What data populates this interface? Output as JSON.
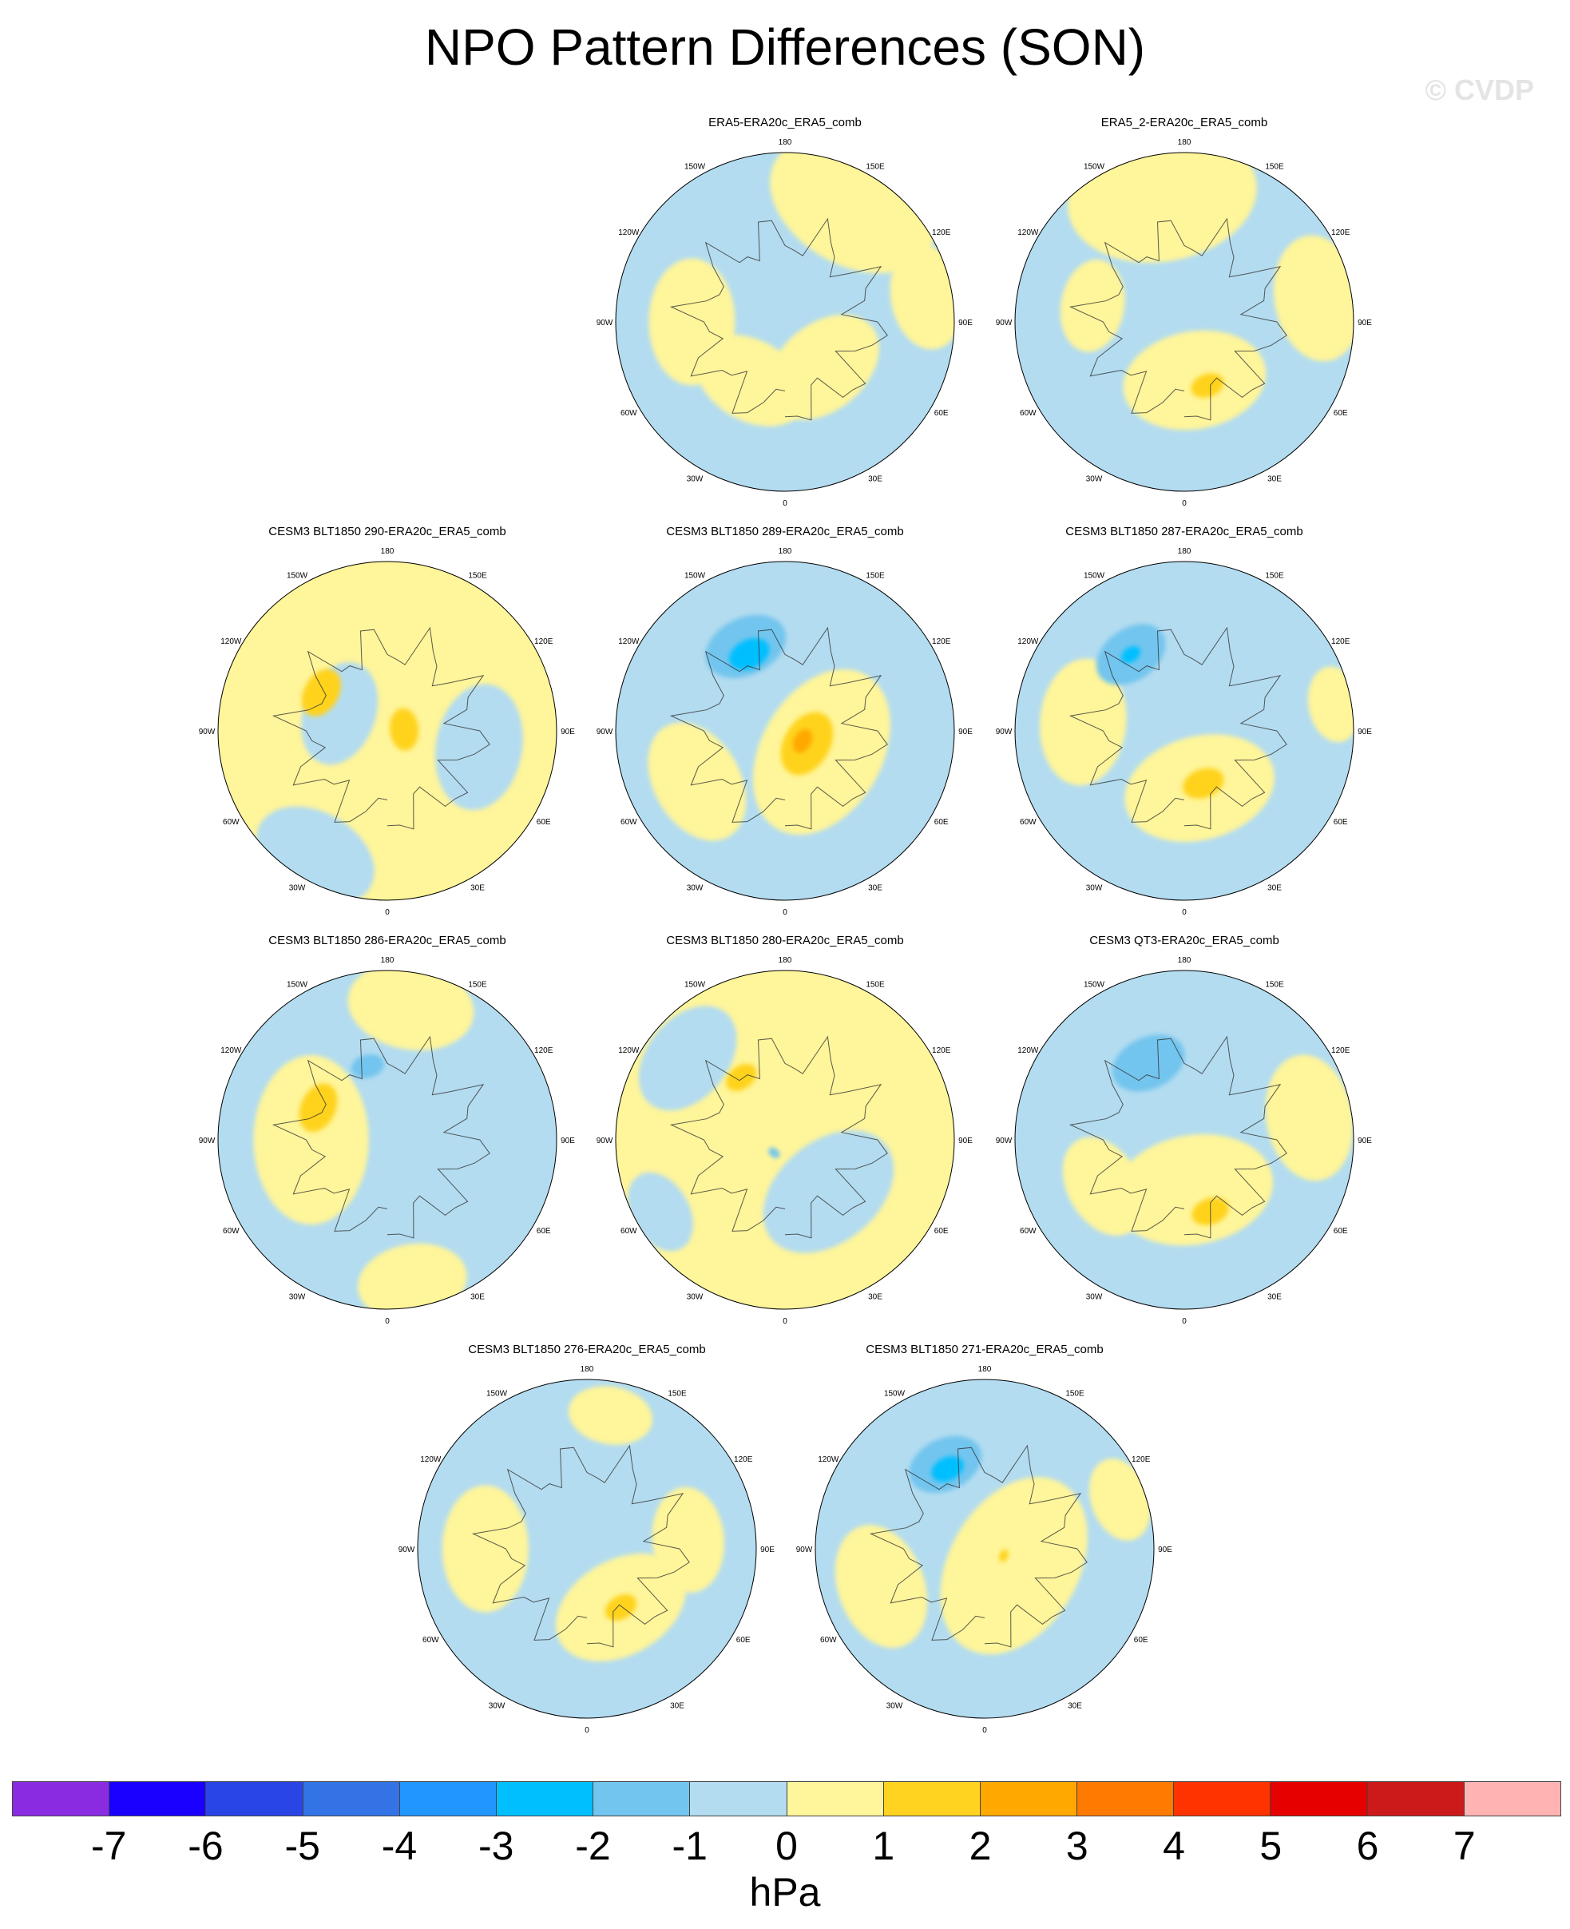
{
  "figure": {
    "title": "NPO Pattern Differences (SON)",
    "watermark": "© CVDP"
  },
  "longitude_labels": [
    "180",
    "150E",
    "120E",
    "90E",
    "60E",
    "30E",
    "0",
    "30W",
    "60W",
    "90W",
    "120W",
    "150W"
  ],
  "colors": {
    "land_outline": "#333333",
    "neg1": "#b3dcf0",
    "neg2": "#72c5ee",
    "neg3": "#00bfff",
    "pos1": "#fff59a",
    "pos2": "#ffd31f",
    "pos3": "#ffa800"
  },
  "panels": [
    {
      "title": "ERA5-ERA20c_ERA5_comb",
      "background": "neg1",
      "features": [
        {
          "sign": "pos1",
          "lon": 150,
          "r": 0.8,
          "size": 0.42
        },
        {
          "sign": "pos1",
          "lon": 270,
          "r": 0.55,
          "size": 0.3
        },
        {
          "sign": "pos1",
          "lon": 40,
          "r": 0.35,
          "size": 0.3
        },
        {
          "sign": "pos1",
          "lon": 330,
          "r": 0.4,
          "size": 0.28
        },
        {
          "sign": "pos1",
          "lon": 100,
          "r": 0.85,
          "size": 0.25
        }
      ]
    },
    {
      "title": "ERA5_2-ERA20c_ERA5_comb",
      "background": "neg1",
      "features": [
        {
          "sign": "pos1",
          "lon": 190,
          "r": 0.75,
          "size": 0.45
        },
        {
          "sign": "pos1",
          "lon": 10,
          "r": 0.35,
          "size": 0.34
        },
        {
          "sign": "pos2",
          "lon": 20,
          "r": 0.4,
          "size": 0.08
        },
        {
          "sign": "pos1",
          "lon": 100,
          "r": 0.8,
          "size": 0.3
        },
        {
          "sign": "pos1",
          "lon": 260,
          "r": 0.55,
          "size": 0.22
        }
      ]
    },
    {
      "title": "CESM3 BLT1850 290-ERA20c_ERA5_comb",
      "background": "pos1",
      "features": [
        {
          "sign": "neg1",
          "lon": 330,
          "r": 0.85,
          "size": 0.3
        },
        {
          "sign": "neg1",
          "lon": 80,
          "r": 0.55,
          "size": 0.3
        },
        {
          "sign": "neg1",
          "lon": 250,
          "r": 0.3,
          "size": 0.25
        },
        {
          "sign": "pos2",
          "lon": 240,
          "r": 0.45,
          "size": 0.12
        },
        {
          "sign": "pos2",
          "lon": 95,
          "r": 0.1,
          "size": 0.1
        }
      ]
    },
    {
      "title": "CESM3 BLT1850 289-ERA20c_ERA5_comb",
      "background": "neg1",
      "features": [
        {
          "sign": "pos1",
          "lon": 60,
          "r": 0.25,
          "size": 0.42
        },
        {
          "sign": "pos1",
          "lon": 300,
          "r": 0.6,
          "size": 0.3
        },
        {
          "sign": "pos2",
          "lon": 60,
          "r": 0.15,
          "size": 0.16
        },
        {
          "sign": "pos3",
          "lon": 60,
          "r": 0.12,
          "size": 0.06
        },
        {
          "sign": "neg2",
          "lon": 205,
          "r": 0.55,
          "size": 0.2
        },
        {
          "sign": "neg3",
          "lon": 205,
          "r": 0.5,
          "size": 0.1
        }
      ]
    },
    {
      "title": "CESM3 BLT1850 287-ERA20c_ERA5_comb",
      "background": "neg1",
      "features": [
        {
          "sign": "pos1",
          "lon": 15,
          "r": 0.35,
          "size": 0.36
        },
        {
          "sign": "pos1",
          "lon": 265,
          "r": 0.6,
          "size": 0.3
        },
        {
          "sign": "pos2",
          "lon": 20,
          "r": 0.33,
          "size": 0.1
        },
        {
          "sign": "neg2",
          "lon": 215,
          "r": 0.55,
          "size": 0.18
        },
        {
          "sign": "neg3",
          "lon": 215,
          "r": 0.55,
          "size": 0.05
        },
        {
          "sign": "pos1",
          "lon": 100,
          "r": 0.9,
          "size": 0.18
        }
      ]
    },
    {
      "title": "CESM3 BLT1850 286-ERA20c_ERA5_comb",
      "background": "neg1",
      "features": [
        {
          "sign": "pos1",
          "lon": 270,
          "r": 0.45,
          "size": 0.4
        },
        {
          "sign": "pos1",
          "lon": 170,
          "r": 0.8,
          "size": 0.3
        },
        {
          "sign": "pos1",
          "lon": 10,
          "r": 0.85,
          "size": 0.26
        },
        {
          "sign": "pos2",
          "lon": 245,
          "r": 0.45,
          "size": 0.12
        },
        {
          "sign": "neg2",
          "lon": 195,
          "r": 0.45,
          "size": 0.08
        }
      ]
    },
    {
      "title": "CESM3 BLT1850 280-ERA20c_ERA5_comb",
      "background": "pos1",
      "features": [
        {
          "sign": "neg1",
          "lon": 40,
          "r": 0.4,
          "size": 0.35
        },
        {
          "sign": "neg1",
          "lon": 230,
          "r": 0.75,
          "size": 0.28
        },
        {
          "sign": "neg1",
          "lon": 300,
          "r": 0.85,
          "size": 0.2
        },
        {
          "sign": "pos2",
          "lon": 215,
          "r": 0.45,
          "size": 0.08
        },
        {
          "sign": "neg2",
          "lon": 320,
          "r": 0.1,
          "size": 0.03
        }
      ]
    },
    {
      "title": "CESM3 QT3-ERA20c_ERA5_comb",
      "background": "neg1",
      "features": [
        {
          "sign": "pos1",
          "lon": 10,
          "r": 0.3,
          "size": 0.38
        },
        {
          "sign": "pos1",
          "lon": 100,
          "r": 0.75,
          "size": 0.3
        },
        {
          "sign": "pos1",
          "lon": 300,
          "r": 0.55,
          "size": 0.25
        },
        {
          "sign": "pos2",
          "lon": 20,
          "r": 0.45,
          "size": 0.09
        },
        {
          "sign": "neg2",
          "lon": 205,
          "r": 0.5,
          "size": 0.18
        }
      ]
    },
    {
      "title": "CESM3 BLT1850 276-ERA20c_ERA5_comb",
      "background": "neg1",
      "features": [
        {
          "sign": "pos1",
          "lon": 30,
          "r": 0.4,
          "size": 0.33
        },
        {
          "sign": "pos1",
          "lon": 270,
          "r": 0.6,
          "size": 0.3
        },
        {
          "sign": "pos1",
          "lon": 95,
          "r": 0.6,
          "size": 0.25
        },
        {
          "sign": "pos1",
          "lon": 170,
          "r": 0.8,
          "size": 0.2
        },
        {
          "sign": "pos2",
          "lon": 30,
          "r": 0.4,
          "size": 0.08
        }
      ]
    },
    {
      "title": "CESM3 BLT1850 271-ERA20c_ERA5_comb",
      "background": "neg1",
      "features": [
        {
          "sign": "pos1",
          "lon": 60,
          "r": 0.2,
          "size": 0.45
        },
        {
          "sign": "pos1",
          "lon": 290,
          "r": 0.65,
          "size": 0.3
        },
        {
          "sign": "pos1",
          "lon": 110,
          "r": 0.85,
          "size": 0.2
        },
        {
          "sign": "neg2",
          "lon": 205,
          "r": 0.55,
          "size": 0.18
        },
        {
          "sign": "neg3",
          "lon": 205,
          "r": 0.52,
          "size": 0.08
        },
        {
          "sign": "pos2",
          "lon": 70,
          "r": 0.12,
          "size": 0.03
        }
      ]
    }
  ],
  "colorbar": {
    "colors": [
      "#8a2be2",
      "#1a00ff",
      "#2a45e6",
      "#3373e6",
      "#2196ff",
      "#00bfff",
      "#72c5ee",
      "#b3dcf0",
      "#fff59a",
      "#ffd31f",
      "#ffa800",
      "#ff7a00",
      "#ff3300",
      "#e60000",
      "#cc1a1a",
      "#ffb3b3"
    ],
    "labels": [
      "-7",
      "-6",
      "-5",
      "-4",
      "-3",
      "-2",
      "-1",
      "0",
      "1",
      "2",
      "3",
      "4",
      "5",
      "6",
      "7"
    ],
    "units": "hPa"
  }
}
